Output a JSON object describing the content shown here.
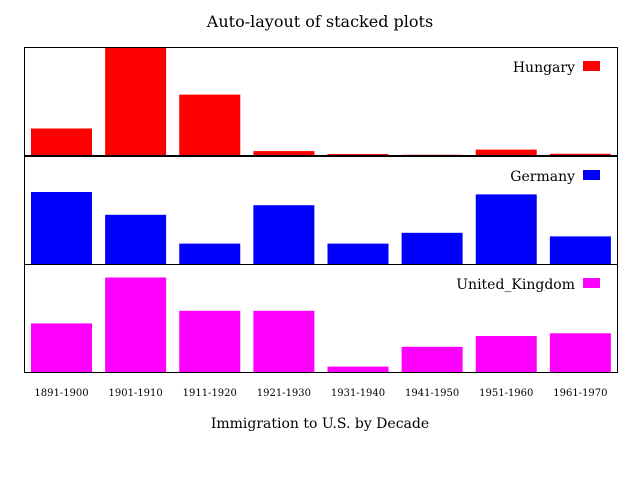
{
  "chart_data": {
    "type": "bar",
    "layout": "stacked-panels",
    "title": "Auto-layout of stacked plots",
    "xlabel": "Immigration to U.S. by Decade",
    "ylabel": "",
    "categories": [
      "1891-1900",
      "1901-1910",
      "1911-1920",
      "1921-1930",
      "1931-1940",
      "1941-1950",
      "1951-1960",
      "1961-1970"
    ],
    "legend_position": "top-right",
    "grid": false,
    "series": [
      {
        "name": "Hungary",
        "color": "#ff0000",
        "ylim": [
          0,
          2200
        ],
        "values": [
          540,
          2200,
          1230,
          80,
          20,
          5,
          110,
          25
        ]
      },
      {
        "name": "Germany",
        "color": "#0000ff",
        "ylim": [
          0,
          900
        ],
        "values": [
          600,
          410,
          170,
          490,
          170,
          260,
          580,
          230
        ]
      },
      {
        "name": "United_Kingdom",
        "color": "#ff00ff",
        "ylim": [
          0,
          600
        ],
        "values": [
          270,
          525,
          340,
          340,
          30,
          140,
          200,
          215
        ]
      }
    ]
  }
}
